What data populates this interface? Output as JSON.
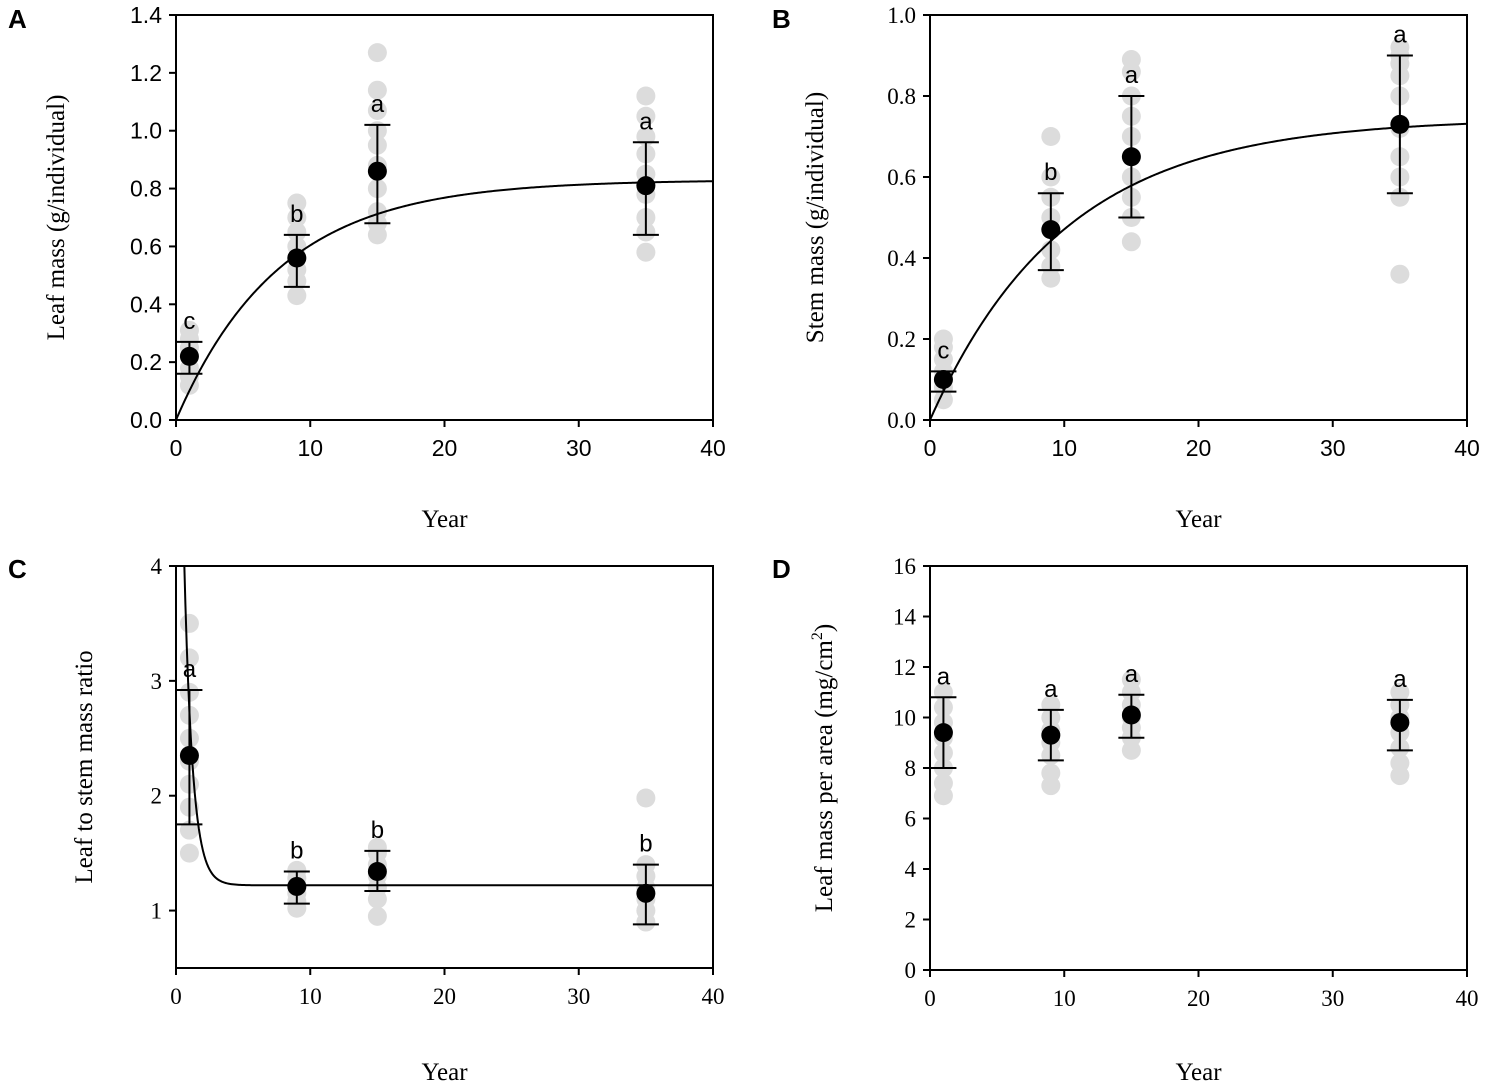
{
  "figure": {
    "colors": {
      "raw_points": "#dcdcdc",
      "mean_points": "#000000",
      "fit_curve": "#000000",
      "axes": "#000000"
    }
  },
  "chart_data": [
    {
      "id": "A",
      "type": "scatter",
      "panel_label": "A",
      "xlabel": "Year",
      "ylabel": "Leaf mass (g/individual)",
      "xlim": [
        0,
        40
      ],
      "ylim": [
        0,
        1.4
      ],
      "xticks": [
        "0",
        "10",
        "20",
        "30",
        "40"
      ],
      "yticks": [
        "0.0",
        "0.2",
        "0.4",
        "0.6",
        "0.8",
        "1.0",
        "1.2",
        "1.4"
      ],
      "tick_font": "sans",
      "means": [
        {
          "x": 1,
          "y": 0.22,
          "lo": 0.16,
          "hi": 0.27,
          "letter": "c"
        },
        {
          "x": 9,
          "y": 0.56,
          "lo": 0.46,
          "hi": 0.64,
          "letter": "b"
        },
        {
          "x": 15,
          "y": 0.86,
          "lo": 0.68,
          "hi": 1.02,
          "letter": "a"
        },
        {
          "x": 35,
          "y": 0.81,
          "lo": 0.64,
          "hi": 0.96,
          "letter": "a"
        }
      ],
      "raw": [
        {
          "x": 1,
          "values": [
            0.12,
            0.15,
            0.18,
            0.22,
            0.25,
            0.28,
            0.31
          ]
        },
        {
          "x": 9,
          "values": [
            0.43,
            0.48,
            0.52,
            0.56,
            0.6,
            0.65,
            0.7,
            0.75
          ]
        },
        {
          "x": 15,
          "values": [
            0.64,
            0.68,
            0.72,
            0.8,
            0.88,
            0.95,
            1.0,
            1.07,
            1.14,
            1.27
          ]
        },
        {
          "x": 35,
          "values": [
            0.58,
            0.65,
            0.7,
            0.78,
            0.85,
            0.92,
            0.98,
            1.05,
            1.12
          ]
        }
      ],
      "fit": {
        "model": "exp_rise",
        "a": 0.83,
        "k": 0.13
      }
    },
    {
      "id": "B",
      "type": "scatter",
      "panel_label": "B",
      "xlabel": "Year",
      "ylabel": "Stem mass (g/individual)",
      "xlim": [
        0,
        40
      ],
      "ylim": [
        0,
        1.0
      ],
      "xticks": [
        "0",
        "10",
        "20",
        "30",
        "40"
      ],
      "yticks": [
        "0.0",
        "0.2",
        "0.4",
        "0.6",
        "0.8",
        "1.0"
      ],
      "tick_font": "mixed",
      "means": [
        {
          "x": 1,
          "y": 0.1,
          "lo": 0.07,
          "hi": 0.12,
          "letter": "c"
        },
        {
          "x": 9,
          "y": 0.47,
          "lo": 0.37,
          "hi": 0.56,
          "letter": "b"
        },
        {
          "x": 15,
          "y": 0.65,
          "lo": 0.5,
          "hi": 0.8,
          "letter": "a"
        },
        {
          "x": 35,
          "y": 0.73,
          "lo": 0.56,
          "hi": 0.9,
          "letter": "a"
        }
      ],
      "raw": [
        {
          "x": 1,
          "values": [
            0.05,
            0.08,
            0.1,
            0.12,
            0.15,
            0.18,
            0.2
          ]
        },
        {
          "x": 9,
          "values": [
            0.35,
            0.38,
            0.42,
            0.47,
            0.5,
            0.55,
            0.6,
            0.7
          ]
        },
        {
          "x": 15,
          "values": [
            0.44,
            0.5,
            0.55,
            0.6,
            0.65,
            0.7,
            0.75,
            0.8,
            0.86,
            0.89
          ]
        },
        {
          "x": 35,
          "values": [
            0.36,
            0.55,
            0.6,
            0.65,
            0.72,
            0.8,
            0.85,
            0.88,
            0.9,
            0.92
          ]
        }
      ],
      "fit": {
        "model": "exp_rise",
        "a": 0.745,
        "k": 0.1
      }
    },
    {
      "id": "C",
      "type": "scatter",
      "panel_label": "C",
      "xlabel": "Year",
      "ylabel": "Leaf to stem mass ratio",
      "xlim": [
        0,
        40
      ],
      "ylim": [
        0.5,
        4
      ],
      "xticks": [
        "0",
        "10",
        "20",
        "30",
        "40"
      ],
      "yticks": [
        "1",
        "2",
        "3",
        "4"
      ],
      "tick_font": "serif",
      "means": [
        {
          "x": 1,
          "y": 2.35,
          "lo": 1.75,
          "hi": 2.92,
          "letter": "a"
        },
        {
          "x": 9,
          "y": 1.21,
          "lo": 1.06,
          "hi": 1.34,
          "letter": "b"
        },
        {
          "x": 15,
          "y": 1.34,
          "lo": 1.17,
          "hi": 1.52,
          "letter": "b"
        },
        {
          "x": 35,
          "y": 1.15,
          "lo": 0.88,
          "hi": 1.4,
          "letter": "b"
        }
      ],
      "raw": [
        {
          "x": 1,
          "values": [
            1.5,
            1.7,
            1.9,
            2.1,
            2.3,
            2.5,
            2.7,
            2.9,
            3.2,
            3.5
          ]
        },
        {
          "x": 9,
          "values": [
            1.02,
            1.08,
            1.15,
            1.22,
            1.28,
            1.35
          ]
        },
        {
          "x": 15,
          "values": [
            0.95,
            1.1,
            1.2,
            1.3,
            1.4,
            1.5,
            1.55
          ]
        },
        {
          "x": 35,
          "values": [
            0.9,
            1.0,
            1.1,
            1.2,
            1.3,
            1.4,
            1.98
          ]
        }
      ],
      "fit": {
        "model": "exp_decay",
        "c": 1.22,
        "b": 7.5,
        "k": 1.6
      }
    },
    {
      "id": "D",
      "type": "scatter",
      "panel_label": "D",
      "xlabel": "Year",
      "ylabel": "Leaf mass per area (mg/cm",
      "ylabel_sup": "2",
      "ylabel_end": ")",
      "xlim": [
        0,
        40
      ],
      "ylim": [
        0,
        16
      ],
      "xticks": [
        "0",
        "10",
        "20",
        "30",
        "40"
      ],
      "yticks": [
        "0",
        "2",
        "4",
        "6",
        "8",
        "10",
        "12",
        "14",
        "16"
      ],
      "tick_font": "serif",
      "means": [
        {
          "x": 1,
          "y": 9.4,
          "lo": 8.0,
          "hi": 10.8,
          "letter": "a"
        },
        {
          "x": 9,
          "y": 9.3,
          "lo": 8.3,
          "hi": 10.3,
          "letter": "a"
        },
        {
          "x": 15,
          "y": 10.1,
          "lo": 9.2,
          "hi": 10.9,
          "letter": "a"
        },
        {
          "x": 35,
          "y": 9.8,
          "lo": 8.7,
          "hi": 10.7,
          "letter": "a"
        }
      ],
      "raw": [
        {
          "x": 1,
          "values": [
            6.9,
            7.4,
            8.0,
            8.6,
            9.2,
            9.8,
            10.4,
            11.0
          ]
        },
        {
          "x": 9,
          "values": [
            7.3,
            7.8,
            8.5,
            9.0,
            9.5,
            10.0,
            10.5
          ]
        },
        {
          "x": 15,
          "values": [
            8.7,
            9.2,
            9.6,
            10.0,
            10.5,
            11.0,
            11.5
          ]
        },
        {
          "x": 35,
          "values": [
            7.7,
            8.2,
            8.8,
            9.4,
            10.0,
            10.5,
            11.0
          ]
        }
      ]
    }
  ]
}
